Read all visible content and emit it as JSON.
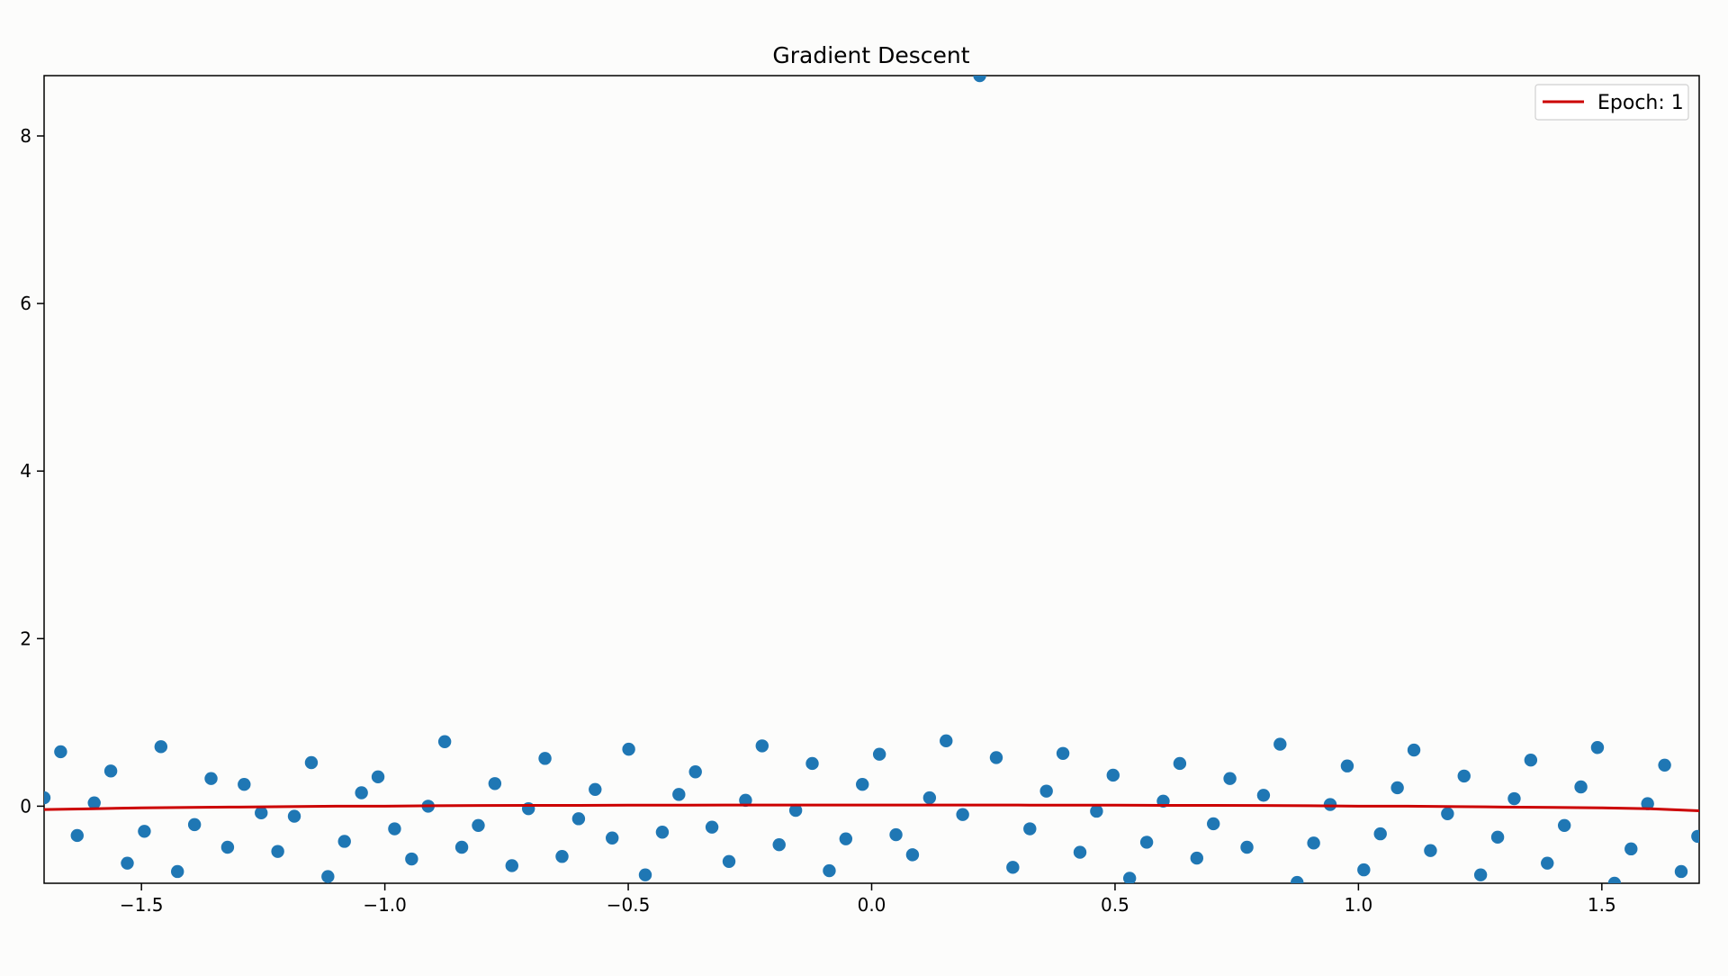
{
  "chart_data": {
    "type": "scatter",
    "title": "Gradient Descent",
    "xlabel": "",
    "ylabel": "",
    "xlim": [
      -1.7,
      1.7
    ],
    "ylim": [
      -0.92,
      8.72
    ],
    "xticks": [
      -1.5,
      -1.0,
      -0.5,
      0.0,
      0.5,
      1.0,
      1.5
    ],
    "xtick_labels": [
      "−1.5",
      "−1.0",
      "−0.5",
      "0.0",
      "0.5",
      "1.0",
      "1.5"
    ],
    "yticks": [
      0,
      2,
      4,
      6,
      8
    ],
    "ytick_labels": [
      "0",
      "2",
      "4",
      "6",
      "8"
    ],
    "grid": false,
    "legend_position": "top-right",
    "series": [
      {
        "kind": "scatter",
        "color": "#1f77b4",
        "x": [
          -1.7,
          -1.666,
          -1.632,
          -1.597,
          -1.563,
          -1.529,
          -1.494,
          -1.46,
          -1.426,
          -1.391,
          -1.357,
          -1.323,
          -1.289,
          -1.254,
          -1.22,
          -1.186,
          -1.151,
          -1.117,
          -1.083,
          -1.048,
          -1.014,
          -0.98,
          -0.945,
          -0.911,
          -0.877,
          -0.842,
          -0.808,
          -0.774,
          -0.739,
          -0.705,
          -0.671,
          -0.636,
          -0.602,
          -0.568,
          -0.533,
          -0.499,
          -0.465,
          -0.43,
          -0.396,
          -0.362,
          -0.328,
          -0.293,
          -0.259,
          -0.225,
          -0.19,
          -0.156,
          -0.122,
          -0.087,
          -0.053,
          -0.019,
          0.016,
          0.05,
          0.084,
          0.119,
          0.153,
          0.187,
          0.222,
          0.256,
          0.29,
          0.325,
          0.359,
          0.393,
          0.428,
          0.462,
          0.496,
          0.53,
          0.565,
          0.599,
          0.633,
          0.668,
          0.702,
          0.736,
          0.771,
          0.805,
          0.839,
          0.874,
          0.908,
          0.942,
          0.977,
          1.011,
          1.045,
          1.08,
          1.114,
          1.148,
          1.183,
          1.217,
          1.251,
          1.286,
          1.32,
          1.354,
          1.388,
          1.423,
          1.457,
          1.491,
          1.526,
          1.56,
          1.594,
          1.629,
          1.663,
          1.697
        ],
        "y": [
          0.1,
          0.65,
          -0.35,
          0.04,
          0.42,
          -0.68,
          -0.3,
          0.71,
          -0.78,
          -0.22,
          0.33,
          -0.49,
          0.26,
          -0.08,
          -0.54,
          -0.12,
          0.52,
          -0.84,
          -0.42,
          0.16,
          0.35,
          -0.27,
          -0.63,
          0.0,
          0.77,
          -0.49,
          -0.23,
          0.27,
          -0.71,
          -0.03,
          0.57,
          -0.6,
          -0.15,
          0.2,
          -0.38,
          0.68,
          -0.82,
          -0.31,
          0.14,
          0.41,
          -0.25,
          -0.66,
          0.07,
          0.72,
          -0.46,
          -0.05,
          0.51,
          -0.77,
          -0.39,
          0.26,
          0.62,
          -0.34,
          -0.58,
          0.1,
          0.78,
          -0.1,
          8.72,
          0.58,
          -0.73,
          -0.27,
          0.18,
          0.63,
          -0.55,
          -0.06,
          0.37,
          -0.86,
          -0.43,
          0.06,
          0.51,
          -0.62,
          -0.21,
          0.33,
          -0.49,
          0.13,
          0.74,
          -0.91,
          -0.44,
          0.02,
          0.48,
          -0.76,
          -0.33,
          0.22,
          0.67,
          -0.53,
          -0.09,
          0.36,
          -0.82,
          -0.37,
          0.09,
          0.55,
          -0.68,
          -0.23,
          0.23,
          0.7,
          -0.92,
          -0.51,
          0.03,
          0.49,
          -0.78,
          -0.36
        ]
      },
      {
        "kind": "line",
        "name": "Epoch: 1",
        "color": "#cc0000",
        "x": [
          -1.7,
          -1.6,
          -1.5,
          -1.4,
          -1.3,
          -1.2,
          -1.1,
          -1.0,
          -0.9,
          -0.8,
          -0.7,
          -0.6,
          -0.5,
          -0.4,
          -0.3,
          -0.2,
          -0.1,
          0.0,
          0.1,
          0.2,
          0.3,
          0.4,
          0.5,
          0.6,
          0.7,
          0.8,
          0.9,
          1.0,
          1.1,
          1.2,
          1.3,
          1.4,
          1.5,
          1.6,
          1.7
        ],
        "y": [
          -0.04,
          -0.03,
          -0.02,
          -0.015,
          -0.01,
          -0.005,
          0.0,
          0.0,
          0.005,
          0.008,
          0.01,
          0.01,
          0.012,
          0.012,
          0.013,
          0.013,
          0.013,
          0.013,
          0.013,
          0.013,
          0.013,
          0.012,
          0.012,
          0.01,
          0.01,
          0.008,
          0.005,
          0.0,
          0.0,
          -0.005,
          -0.01,
          -0.015,
          -0.02,
          -0.03,
          -0.055
        ]
      }
    ],
    "legend": [
      {
        "label": "Epoch: 1",
        "color": "#cc0000",
        "marker": "line"
      }
    ]
  }
}
